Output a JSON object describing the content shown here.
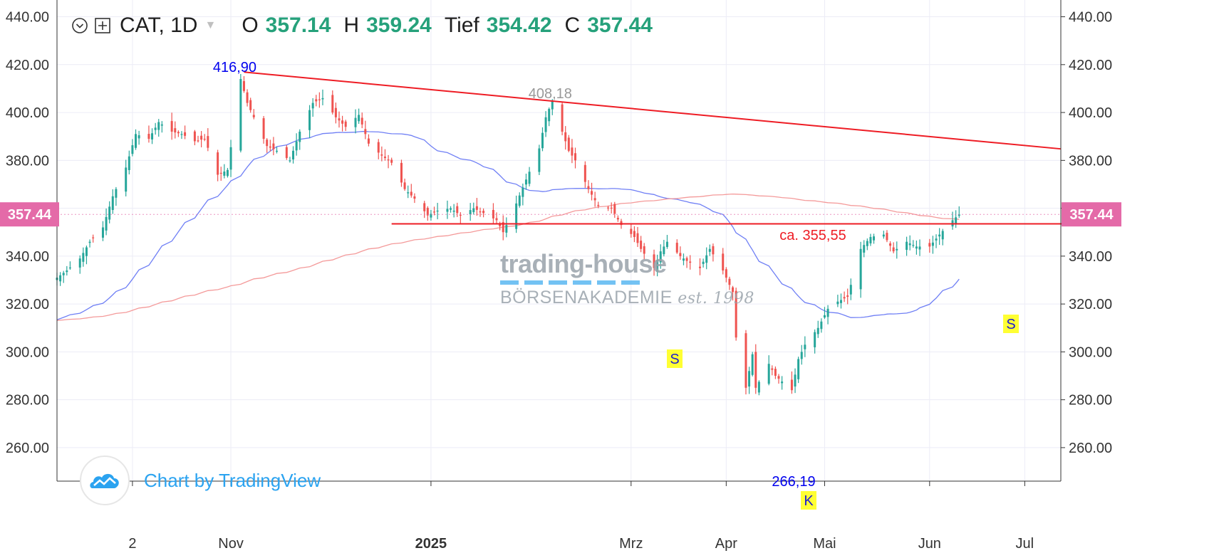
{
  "header": {
    "symbol": "CAT, 1D",
    "open_label": "O",
    "open_value": "357.14",
    "high_label": "H",
    "high_value": "359.24",
    "low_label": "Tief",
    "low_value": "354.42",
    "close_label": "C",
    "close_value": "357.44"
  },
  "watermark": {
    "line1": "trading-house",
    "line2": "BÖRSENAKADEMIE",
    "est": "est. 1998"
  },
  "tradingview": {
    "text": "Chart by TradingView"
  },
  "colors": {
    "up": "#26a69a",
    "down": "#ef5350",
    "trendline": "#ee1c24",
    "ma_blue": "#6f7ff5",
    "ma_red": "#f49a9a",
    "annotation_blue": "#0000ee",
    "price_tag": "#e46aa8",
    "marker_bg": "#ffff33"
  },
  "chart_data": {
    "type": "candlestick",
    "ylim": [
      246,
      447
    ],
    "y_ticks": [
      260,
      280,
      300,
      320,
      340,
      360,
      380,
      400,
      420,
      440
    ],
    "y_tick_labels": [
      "260.00",
      "280.00",
      "300.00",
      "320.00",
      "340.00",
      "360.00",
      "380.00",
      "400.00",
      "420.00",
      "440.00"
    ],
    "x_ticks": [
      {
        "date": "2024-10-02",
        "label": "2",
        "bold": false
      },
      {
        "date": "2024-11-01",
        "label": "Nov",
        "bold": false
      },
      {
        "date": "2025-01-01",
        "label": "2025",
        "bold": true
      },
      {
        "date": "2025-03-03",
        "label": "Mrz",
        "bold": false
      },
      {
        "date": "2025-04-01",
        "label": "Apr",
        "bold": false
      },
      {
        "date": "2025-05-01",
        "label": "Mai",
        "bold": false
      },
      {
        "date": "2025-06-02",
        "label": "Jun",
        "bold": false
      },
      {
        "date": "2025-07-01",
        "label": "Jul",
        "bold": false
      }
    ],
    "xlim": [
      "2024-09-09",
      "2025-07-12"
    ],
    "last_price": 357.44,
    "last_price_label": "357.44",
    "closes": [
      [
        "2024-09-09",
        331.0
      ],
      [
        "2024-09-12",
        334.0
      ],
      [
        "2024-09-16",
        339.0
      ],
      [
        "2024-09-19",
        346.0
      ],
      [
        "2024-09-23",
        352.0
      ],
      [
        "2024-09-26",
        365.0
      ],
      [
        "2024-09-30",
        377.0
      ],
      [
        "2024-10-03",
        391.0
      ],
      [
        "2024-10-07",
        389.0
      ],
      [
        "2024-10-10",
        396.0
      ],
      [
        "2024-10-14",
        392.0
      ],
      [
        "2024-10-17",
        391.0
      ],
      [
        "2024-10-21",
        388.0
      ],
      [
        "2024-10-24",
        389.0
      ],
      [
        "2024-10-28",
        374.0
      ],
      [
        "2024-10-31",
        376.0
      ],
      [
        "2024-11-04",
        414.0
      ],
      [
        "2024-11-06",
        404.0
      ],
      [
        "2024-11-08",
        398.0
      ],
      [
        "2024-11-12",
        386.0
      ],
      [
        "2024-11-15",
        384.0
      ],
      [
        "2024-11-19",
        380.0
      ],
      [
        "2024-11-22",
        392.0
      ],
      [
        "2024-11-26",
        404.0
      ],
      [
        "2024-11-29",
        406.0
      ],
      [
        "2024-12-03",
        398.0
      ],
      [
        "2024-12-06",
        394.0
      ],
      [
        "2024-12-10",
        399.0
      ],
      [
        "2024-12-13",
        387.0
      ],
      [
        "2024-12-17",
        382.0
      ],
      [
        "2024-12-20",
        379.0
      ],
      [
        "2024-12-24",
        368.0
      ],
      [
        "2024-12-27",
        364.0
      ],
      [
        "2024-12-31",
        357.0
      ],
      [
        "2025-01-03",
        359.0
      ],
      [
        "2025-01-07",
        360.0
      ],
      [
        "2025-01-10",
        357.0
      ],
      [
        "2025-01-14",
        360.0
      ],
      [
        "2025-01-17",
        358.0
      ],
      [
        "2025-01-21",
        355.0
      ],
      [
        "2025-01-23",
        350.0
      ],
      [
        "2025-01-27",
        362.0
      ],
      [
        "2025-01-30",
        372.0
      ],
      [
        "2025-02-03",
        385.0
      ],
      [
        "2025-02-05",
        398.0
      ],
      [
        "2025-02-07",
        405.0
      ],
      [
        "2025-02-10",
        392.0
      ],
      [
        "2025-02-12",
        384.0
      ],
      [
        "2025-02-14",
        380.0
      ],
      [
        "2025-02-18",
        368.0
      ],
      [
        "2025-02-21",
        361.0
      ],
      [
        "2025-02-25",
        360.0
      ],
      [
        "2025-02-28",
        353.0
      ],
      [
        "2025-03-04",
        348.0
      ],
      [
        "2025-03-06",
        343.0
      ],
      [
        "2025-03-10",
        335.0
      ],
      [
        "2025-03-12",
        342.0
      ],
      [
        "2025-03-14",
        346.0
      ],
      [
        "2025-03-18",
        340.0
      ],
      [
        "2025-03-20",
        338.0
      ],
      [
        "2025-03-24",
        335.0
      ],
      [
        "2025-03-27",
        343.0
      ],
      [
        "2025-03-31",
        334.0
      ],
      [
        "2025-04-03",
        325.0
      ],
      [
        "2025-04-04",
        306.0
      ],
      [
        "2025-04-07",
        285.0
      ],
      [
        "2025-04-09",
        299.0
      ],
      [
        "2025-04-10",
        285.0
      ],
      [
        "2025-04-14",
        295.0
      ],
      [
        "2025-04-16",
        290.0
      ],
      [
        "2025-04-21",
        284.0
      ],
      [
        "2025-04-23",
        297.0
      ],
      [
        "2025-04-25",
        303.0
      ],
      [
        "2025-04-29",
        310.0
      ],
      [
        "2025-05-02",
        318.0
      ],
      [
        "2025-05-05",
        321.0
      ],
      [
        "2025-05-08",
        323.0
      ],
      [
        "2025-05-12",
        343.0
      ],
      [
        "2025-05-15",
        348.0
      ],
      [
        "2025-05-19",
        349.0
      ],
      [
        "2025-05-22",
        342.0
      ],
      [
        "2025-05-26",
        346.0
      ],
      [
        "2025-05-29",
        344.0
      ],
      [
        "2025-06-02",
        344.0
      ],
      [
        "2025-06-05",
        349.0
      ],
      [
        "2025-06-09",
        355.0
      ],
      [
        "2025-06-11",
        357.44
      ]
    ]
  },
  "annotations": {
    "high_label": "416,90",
    "second_high_label": "408,18",
    "support_label": "ca. 355,55",
    "low_label": "266,19",
    "marker_s1": "S",
    "marker_k": "K",
    "marker_s2": "S"
  }
}
